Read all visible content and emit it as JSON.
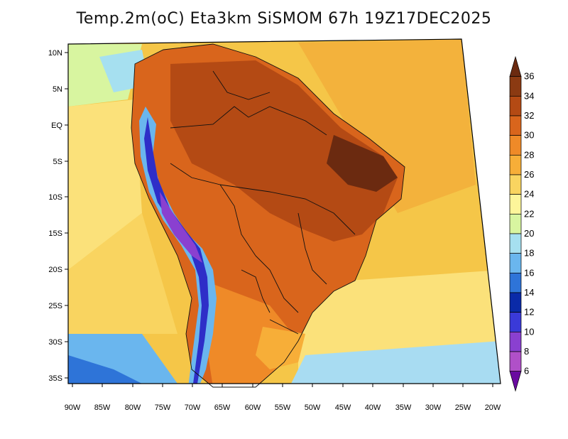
{
  "title": "Temp.2m(oC) Eta3km SiSMOM 67h 19Z17DEC2025",
  "map": {
    "lat_ticks": [
      "10N",
      "5N",
      "EQ",
      "5S",
      "10S",
      "15S",
      "20S",
      "25S",
      "30S",
      "35S"
    ],
    "lon_ticks": [
      "90W",
      "85W",
      "80W",
      "75W",
      "70W",
      "65W",
      "60W",
      "55W",
      "50W",
      "45W",
      "40W",
      "35W",
      "30W",
      "25W",
      "20W"
    ]
  },
  "colorbar": {
    "labels": [
      "36",
      "34",
      "32",
      "30",
      "28",
      "26",
      "24",
      "22",
      "20",
      "18",
      "16",
      "14",
      "12",
      "10",
      "8",
      "6"
    ],
    "colors": [
      "#6b2a10",
      "#8b3a12",
      "#b44a14",
      "#d9651c",
      "#ef8a28",
      "#f7ae38",
      "#f9d460",
      "#fdf59a",
      "#d8f5a0",
      "#a6e0f0",
      "#6ab6ee",
      "#2e74d8",
      "#0a2aa8",
      "#3a3ad8",
      "#8a40d0",
      "#b050c8",
      "#6a0aa0"
    ]
  }
}
